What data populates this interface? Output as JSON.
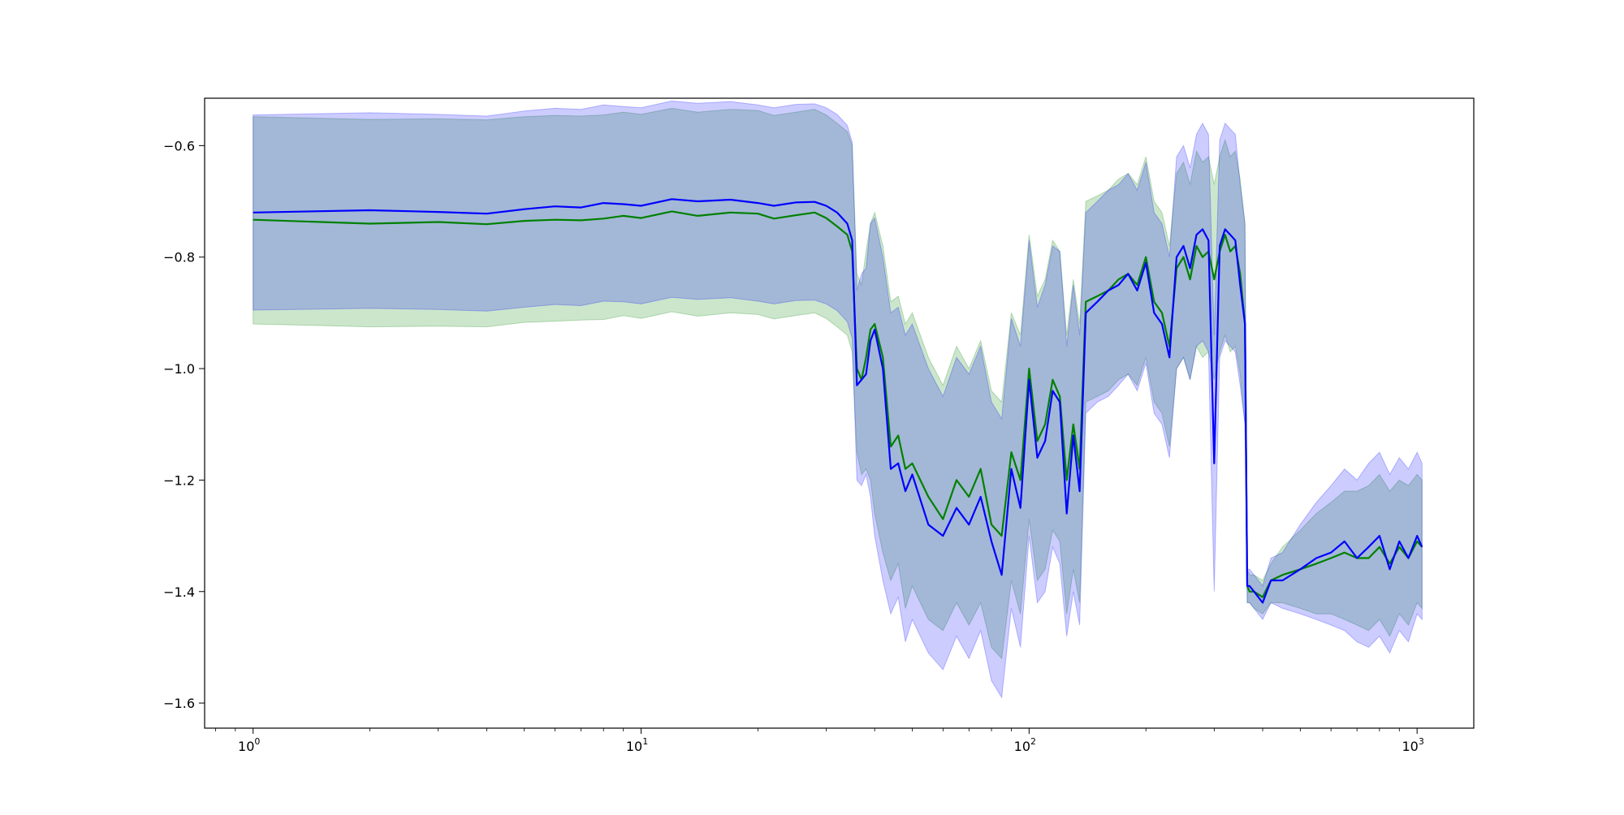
{
  "chart_data": {
    "type": "line",
    "title": "",
    "xlabel": "",
    "ylabel": "",
    "xscale": "log",
    "xlim": [
      0.75,
      1400
    ],
    "ylim": [
      -1.645,
      -0.515
    ],
    "grid": false,
    "legend": "none",
    "x_tick_labels": [
      "10",
      "10",
      "10",
      "10"
    ],
    "x_tick_exponents": [
      "0",
      "1",
      "2",
      "3"
    ],
    "x_tick_values": [
      1,
      10,
      100,
      1000
    ],
    "y_tick_labels": [
      "−0.6",
      "−0.8",
      "−1.0",
      "−1.2",
      "−1.4",
      "−1.6"
    ],
    "y_tick_values": [
      -0.6,
      -0.8,
      -1.0,
      -1.2,
      -1.4,
      -1.6
    ],
    "series": [
      {
        "color": "#008000",
        "band_color": "#008000",
        "x": [
          1,
          2,
          3,
          4,
          5,
          6,
          7,
          8,
          9,
          10,
          12,
          14,
          17,
          20,
          22,
          25,
          28,
          30,
          32,
          34,
          35,
          36,
          37,
          38,
          39,
          40,
          42,
          44,
          46,
          48,
          50,
          55,
          60,
          65,
          70,
          75,
          80,
          85,
          90,
          95,
          100,
          105,
          110,
          115,
          120,
          125,
          130,
          135,
          140,
          150,
          160,
          170,
          180,
          190,
          200,
          210,
          220,
          230,
          240,
          250,
          260,
          270,
          280,
          290,
          300,
          310,
          320,
          330,
          340,
          350,
          360,
          365,
          370,
          380,
          400,
          420,
          450,
          500,
          550,
          600,
          650,
          700,
          750,
          800,
          850,
          900,
          950,
          1000,
          1030
        ],
        "y": [
          -0.733,
          -0.74,
          -0.737,
          -0.741,
          -0.735,
          -0.733,
          -0.734,
          -0.731,
          -0.726,
          -0.73,
          -0.718,
          -0.726,
          -0.72,
          -0.722,
          -0.731,
          -0.725,
          -0.72,
          -0.73,
          -0.745,
          -0.76,
          -0.79,
          -1.0,
          -1.02,
          -0.98,
          -0.93,
          -0.92,
          -0.98,
          -1.14,
          -1.12,
          -1.18,
          -1.17,
          -1.23,
          -1.27,
          -1.2,
          -1.23,
          -1.18,
          -1.28,
          -1.3,
          -1.15,
          -1.2,
          -1.0,
          -1.13,
          -1.1,
          -1.02,
          -1.05,
          -1.2,
          -1.1,
          -1.18,
          -0.88,
          -0.87,
          -0.86,
          -0.84,
          -0.83,
          -0.85,
          -0.8,
          -0.88,
          -0.9,
          -0.96,
          -0.82,
          -0.8,
          -0.84,
          -0.78,
          -0.8,
          -0.79,
          -0.84,
          -0.79,
          -0.76,
          -0.79,
          -0.78,
          -0.83,
          -0.92,
          -1.39,
          -1.4,
          -1.4,
          -1.41,
          -1.38,
          -1.37,
          -1.36,
          -1.35,
          -1.34,
          -1.33,
          -1.34,
          -1.34,
          -1.32,
          -1.35,
          -1.32,
          -1.34,
          -1.31,
          -1.32
        ],
        "y_lower": [
          -0.92,
          -0.925,
          -0.924,
          -0.925,
          -0.917,
          -0.915,
          -0.913,
          -0.912,
          -0.905,
          -0.91,
          -0.898,
          -0.906,
          -0.9,
          -0.903,
          -0.911,
          -0.905,
          -0.9,
          -0.91,
          -0.925,
          -0.94,
          -0.97,
          -1.15,
          -1.19,
          -1.18,
          -1.2,
          -1.26,
          -1.33,
          -1.38,
          -1.35,
          -1.43,
          -1.39,
          -1.45,
          -1.47,
          -1.42,
          -1.46,
          -1.42,
          -1.5,
          -1.52,
          -1.38,
          -1.44,
          -1.27,
          -1.38,
          -1.36,
          -1.29,
          -1.31,
          -1.44,
          -1.36,
          -1.42,
          -1.06,
          -1.05,
          -1.04,
          -1.02,
          -1.01,
          -1.03,
          -0.98,
          -1.06,
          -1.08,
          -1.14,
          -1.0,
          -0.98,
          -1.02,
          -0.96,
          -0.98,
          -0.97,
          -1.02,
          -0.97,
          -0.94,
          -0.97,
          -0.96,
          -1.01,
          -1.1,
          -1.42,
          -1.42,
          -1.43,
          -1.44,
          -1.42,
          -1.42,
          -1.43,
          -1.44,
          -1.44,
          -1.45,
          -1.46,
          -1.47,
          -1.45,
          -1.48,
          -1.44,
          -1.46,
          -1.42,
          -1.43
        ],
        "y_upper": [
          -0.548,
          -0.553,
          -0.552,
          -0.554,
          -0.548,
          -0.546,
          -0.547,
          -0.545,
          -0.54,
          -0.544,
          -0.533,
          -0.54,
          -0.535,
          -0.537,
          -0.546,
          -0.54,
          -0.535,
          -0.545,
          -0.56,
          -0.575,
          -0.6,
          -0.83,
          -0.85,
          -0.79,
          -0.74,
          -0.72,
          -0.78,
          -0.88,
          -0.87,
          -0.92,
          -0.9,
          -0.98,
          -1.03,
          -0.96,
          -1.0,
          -0.95,
          -1.04,
          -1.06,
          -0.9,
          -0.94,
          -0.76,
          -0.87,
          -0.84,
          -0.77,
          -0.79,
          -0.94,
          -0.84,
          -0.92,
          -0.7,
          -0.69,
          -0.68,
          -0.66,
          -0.65,
          -0.67,
          -0.62,
          -0.7,
          -0.72,
          -0.78,
          -0.65,
          -0.63,
          -0.67,
          -0.61,
          -0.63,
          -0.62,
          -0.67,
          -0.62,
          -0.59,
          -0.62,
          -0.61,
          -0.66,
          -0.74,
          -1.36,
          -1.37,
          -1.37,
          -1.38,
          -1.35,
          -1.32,
          -1.29,
          -1.26,
          -1.24,
          -1.22,
          -1.22,
          -1.21,
          -1.19,
          -1.22,
          -1.2,
          -1.21,
          -1.19,
          -1.2
        ]
      },
      {
        "color": "#0000ff",
        "band_color": "#0000ff",
        "x": [
          1,
          2,
          3,
          4,
          5,
          6,
          7,
          8,
          9,
          10,
          12,
          14,
          17,
          20,
          22,
          25,
          28,
          30,
          32,
          34,
          35,
          36,
          37,
          38,
          39,
          40,
          42,
          44,
          46,
          48,
          50,
          55,
          60,
          65,
          70,
          75,
          80,
          85,
          90,
          95,
          100,
          105,
          110,
          115,
          120,
          125,
          130,
          135,
          140,
          150,
          160,
          170,
          180,
          190,
          200,
          210,
          220,
          230,
          240,
          250,
          260,
          270,
          280,
          290,
          300,
          310,
          320,
          330,
          340,
          350,
          360,
          365,
          370,
          380,
          400,
          420,
          450,
          500,
          550,
          600,
          650,
          700,
          750,
          800,
          850,
          900,
          950,
          1000,
          1030
        ],
        "y": [
          -0.72,
          -0.716,
          -0.719,
          -0.722,
          -0.714,
          -0.709,
          -0.711,
          -0.703,
          -0.705,
          -0.708,
          -0.696,
          -0.7,
          -0.697,
          -0.703,
          -0.708,
          -0.702,
          -0.701,
          -0.708,
          -0.72,
          -0.74,
          -0.77,
          -1.03,
          -1.02,
          -1.01,
          -0.95,
          -0.93,
          -1.0,
          -1.18,
          -1.17,
          -1.22,
          -1.19,
          -1.28,
          -1.3,
          -1.25,
          -1.28,
          -1.23,
          -1.31,
          -1.37,
          -1.18,
          -1.25,
          -1.02,
          -1.16,
          -1.13,
          -1.04,
          -1.06,
          -1.26,
          -1.12,
          -1.22,
          -0.9,
          -0.88,
          -0.86,
          -0.85,
          -0.83,
          -0.86,
          -0.81,
          -0.9,
          -0.92,
          -0.98,
          -0.8,
          -0.78,
          -0.82,
          -0.76,
          -0.75,
          -0.77,
          -1.17,
          -0.78,
          -0.75,
          -0.76,
          -0.77,
          -0.85,
          -0.92,
          -1.39,
          -1.39,
          -1.4,
          -1.42,
          -1.38,
          -1.38,
          -1.36,
          -1.34,
          -1.33,
          -1.31,
          -1.34,
          -1.32,
          -1.3,
          -1.36,
          -1.31,
          -1.34,
          -1.3,
          -1.32
        ],
        "y_lower": [
          -0.895,
          -0.892,
          -0.894,
          -0.897,
          -0.89,
          -0.885,
          -0.887,
          -0.879,
          -0.88,
          -0.884,
          -0.872,
          -0.876,
          -0.873,
          -0.879,
          -0.884,
          -0.878,
          -0.877,
          -0.884,
          -0.896,
          -0.916,
          -0.946,
          -1.2,
          -1.21,
          -1.19,
          -1.23,
          -1.3,
          -1.38,
          -1.44,
          -1.41,
          -1.49,
          -1.45,
          -1.51,
          -1.54,
          -1.48,
          -1.52,
          -1.47,
          -1.56,
          -1.59,
          -1.43,
          -1.5,
          -1.3,
          -1.42,
          -1.4,
          -1.32,
          -1.35,
          -1.48,
          -1.4,
          -1.46,
          -1.08,
          -1.06,
          -1.05,
          -1.03,
          -1.01,
          -1.04,
          -0.99,
          -1.08,
          -1.1,
          -1.16,
          -1.0,
          -0.98,
          -1.02,
          -0.96,
          -0.95,
          -0.97,
          -1.4,
          -0.98,
          -0.95,
          -0.96,
          -0.97,
          -1.03,
          -1.1,
          -1.42,
          -1.42,
          -1.43,
          -1.45,
          -1.42,
          -1.43,
          -1.44,
          -1.45,
          -1.46,
          -1.47,
          -1.49,
          -1.5,
          -1.48,
          -1.51,
          -1.47,
          -1.49,
          -1.44,
          -1.45
        ],
        "y_upper": [
          -0.545,
          -0.541,
          -0.544,
          -0.547,
          -0.538,
          -0.533,
          -0.535,
          -0.527,
          -0.53,
          -0.532,
          -0.52,
          -0.524,
          -0.521,
          -0.527,
          -0.532,
          -0.526,
          -0.525,
          -0.532,
          -0.544,
          -0.564,
          -0.594,
          -0.86,
          -0.83,
          -0.82,
          -0.74,
          -0.73,
          -0.8,
          -0.9,
          -0.89,
          -0.94,
          -0.92,
          -1.0,
          -1.05,
          -0.98,
          -1.01,
          -0.96,
          -1.06,
          -1.09,
          -0.91,
          -0.96,
          -0.77,
          -0.89,
          -0.85,
          -0.78,
          -0.79,
          -0.96,
          -0.85,
          -0.94,
          -0.72,
          -0.7,
          -0.68,
          -0.67,
          -0.65,
          -0.68,
          -0.63,
          -0.72,
          -0.74,
          -0.8,
          -0.62,
          -0.6,
          -0.64,
          -0.58,
          -0.56,
          -0.58,
          -0.94,
          -0.59,
          -0.56,
          -0.57,
          -0.58,
          -0.67,
          -0.74,
          -1.36,
          -1.36,
          -1.37,
          -1.39,
          -1.34,
          -1.33,
          -1.28,
          -1.24,
          -1.21,
          -1.18,
          -1.2,
          -1.17,
          -1.15,
          -1.19,
          -1.16,
          -1.18,
          -1.15,
          -1.17
        ]
      }
    ]
  }
}
